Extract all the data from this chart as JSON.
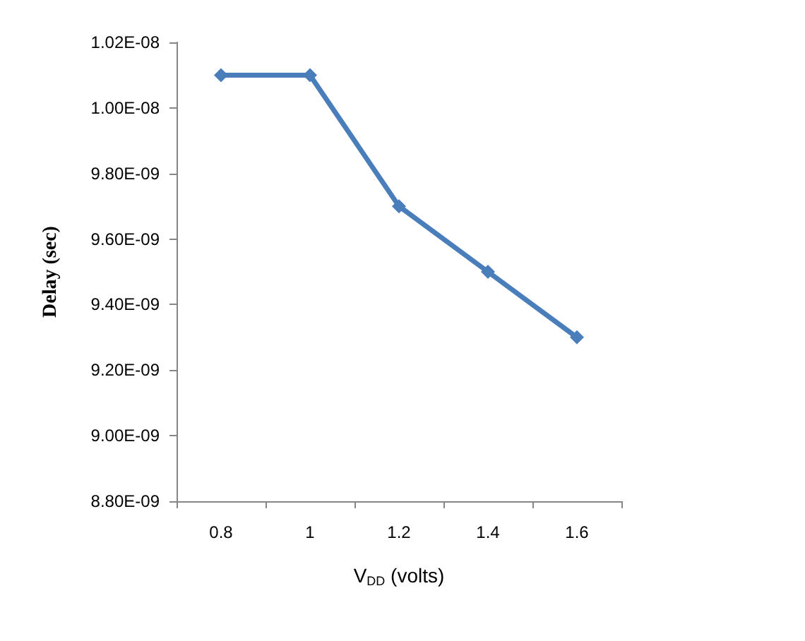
{
  "chart_data": {
    "type": "line",
    "xlabel": "V$_{DD}$ (volts)",
    "ylabel": "Delay (sec)",
    "categories": [
      "0.8",
      "1",
      "1.2",
      "1.4",
      "1.6"
    ],
    "series": [
      {
        "color": "#4a7ebb",
        "values": [
          1.01e-08,
          1.01e-08,
          9.7e-09,
          9.5e-09,
          9.3e-09
        ]
      }
    ],
    "ylim": [
      8.8e-09,
      1.02e-08
    ],
    "yticks": [
      {
        "value": 8.8e-09,
        "label": "8.80E-09"
      },
      {
        "value": 9e-09,
        "label": "9.00E-09"
      },
      {
        "value": 9.2e-09,
        "label": "9.20E-09"
      },
      {
        "value": 9.4e-09,
        "label": "9.40E-09"
      },
      {
        "value": 9.6e-09,
        "label": "9.60E-09"
      },
      {
        "value": 9.8e-09,
        "label": "9.80E-09"
      },
      {
        "value": 1e-08,
        "label": "1.00E-08"
      },
      {
        "value": 1.02e-08,
        "label": "1.02E-08"
      }
    ],
    "grid": false,
    "marker": "diamond",
    "line_style": "solid"
  }
}
